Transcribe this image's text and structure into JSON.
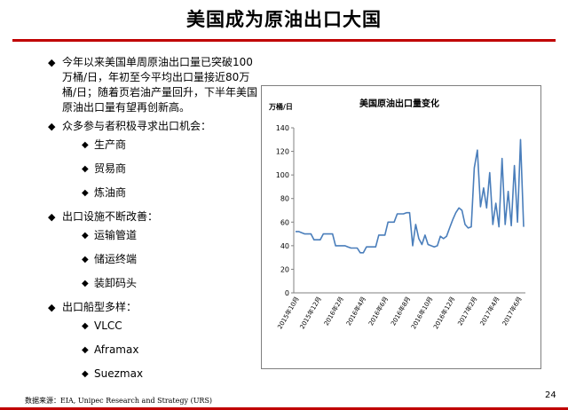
{
  "slide": {
    "title": "美国成为原油出口大国",
    "footer": "数据来源：EIA, Unipec Research and Strategy (URS)",
    "page_number": "24"
  },
  "bullets": [
    {
      "text": "今年以来美国单周原油出口量已突破100万桶/日，年初至今平均出口量接近80万桶/日；随着页岩油产量回升，下半年美国原油出口量有望再创新高。",
      "subs": []
    },
    {
      "text": "众多参与者积极寻求出口机会：",
      "subs": [
        "生产商",
        "贸易商",
        "炼油商"
      ]
    },
    {
      "text": "出口设施不断改善：",
      "subs": [
        "运输管道",
        "储运终端",
        "装卸码头"
      ]
    },
    {
      "text": "出口船型多样：",
      "subs": [
        "VLCC",
        "Aframax",
        "Suezmax"
      ]
    }
  ],
  "chart_data": {
    "type": "line",
    "title": "美国原油出口量变化",
    "ylabel": "万桶/日",
    "ylim": [
      0,
      140
    ],
    "yticks": [
      0,
      20,
      40,
      60,
      80,
      100,
      120,
      140
    ],
    "xticks": [
      "2015年10月",
      "2015年12月",
      "2016年2月",
      "2016年4月",
      "2016年6月",
      "2016年8月",
      "2016年10月",
      "2016年12月",
      "2017年2月",
      "2017年4月",
      "2017年6月"
    ],
    "line_color": "#4a7ebb",
    "series": [
      {
        "values": [
          52,
          52,
          51,
          50,
          50,
          50,
          45,
          45,
          45,
          50,
          50,
          50,
          50,
          40,
          40,
          40,
          40,
          39,
          38,
          38,
          38,
          34,
          34,
          39,
          39,
          39,
          39,
          49,
          49,
          49,
          60,
          60,
          60,
          67,
          67,
          67,
          68,
          68,
          40,
          58,
          46,
          41,
          49,
          41,
          40,
          39,
          40,
          48,
          46,
          48,
          55,
          62,
          68,
          72,
          70,
          58,
          55,
          56,
          106,
          121,
          73,
          89,
          72,
          102,
          58,
          76,
          56,
          114,
          58,
          86,
          57,
          108,
          60,
          130,
          56
        ]
      }
    ]
  }
}
